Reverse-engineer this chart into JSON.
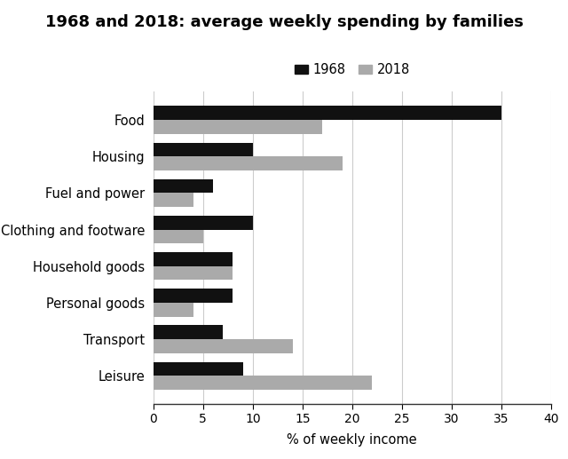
{
  "title": "1968 and 2018: average weekly spending by families",
  "categories": [
    "Food",
    "Housing",
    "Fuel and power",
    "Clothing and footware",
    "Household goods",
    "Personal goods",
    "Transport",
    "Leisure"
  ],
  "values_1968": [
    35,
    10,
    6,
    10,
    8,
    8,
    7,
    9
  ],
  "values_2018": [
    17,
    19,
    4,
    5,
    8,
    4,
    14,
    22
  ],
  "color_1968": "#111111",
  "color_2018": "#aaaaaa",
  "xlabel": "% of weekly income",
  "xlim": [
    0,
    40
  ],
  "xticks": [
    0,
    5,
    10,
    15,
    20,
    25,
    30,
    35,
    40
  ],
  "legend_labels": [
    "1968",
    "2018"
  ],
  "bar_height": 0.38,
  "title_fontsize": 13,
  "label_fontsize": 10.5,
  "tick_fontsize": 10,
  "grid_color": "#cccccc"
}
